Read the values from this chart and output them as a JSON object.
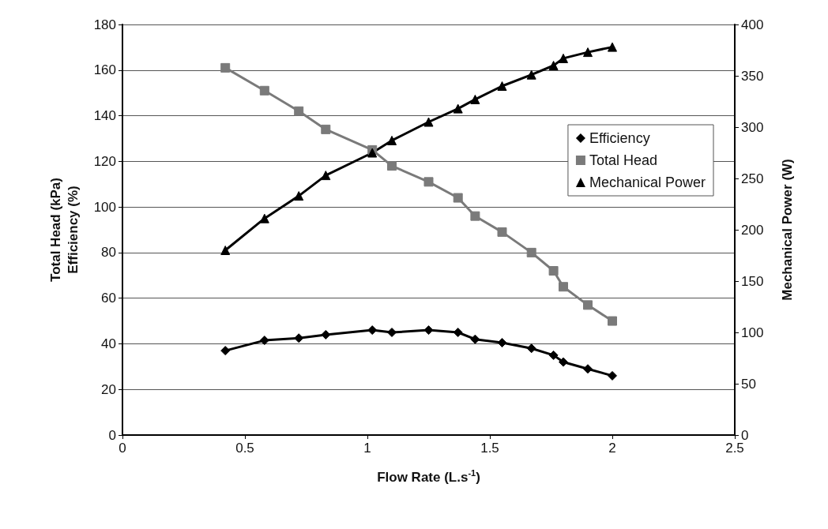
{
  "chart_data": {
    "type": "line",
    "xlabel": "Flow Rate (L.s$^{-1}$)",
    "ylabel": "Total Head (kPa)\nEfficiency (%)",
    "y2label": "Mechanical Power (W)",
    "x": [
      0.42,
      0.58,
      0.72,
      0.83,
      1.02,
      1.1,
      1.25,
      1.37,
      1.44,
      1.55,
      1.67,
      1.76,
      1.8,
      1.9,
      2.0
    ],
    "series": [
      {
        "name": "Efficiency",
        "color": "#000000",
        "marker": "diamond",
        "values": [
          37,
          41.5,
          42.5,
          44,
          46,
          45,
          46,
          45,
          42,
          40.5,
          38,
          35,
          32,
          29,
          26
        ]
      },
      {
        "name": "Total Head",
        "color": "#7a7a7a",
        "marker": "square",
        "values": [
          161,
          151,
          142,
          134,
          125,
          118,
          111,
          104,
          96,
          89,
          80,
          72,
          65,
          57,
          50
        ]
      },
      {
        "name": "Mechanical Power",
        "color": "#000000",
        "marker": "triangle",
        "axis": "y2",
        "values": [
          180,
          211,
          233,
          253,
          275,
          287,
          305,
          318,
          327,
          340,
          351,
          360,
          367,
          373,
          378
        ]
      }
    ],
    "xlim": [
      0,
      2.5
    ],
    "xticks": [
      0,
      0.5,
      1,
      1.5,
      2,
      2.5
    ],
    "ylim": [
      0,
      180
    ],
    "yticks": [
      0,
      20,
      40,
      60,
      80,
      100,
      120,
      140,
      160,
      180
    ],
    "y2lim": [
      0,
      400
    ],
    "y2ticks": [
      0,
      50,
      100,
      150,
      200,
      250,
      300,
      350,
      400
    ],
    "grid": "y",
    "legend": "right",
    "line_style": "solid"
  }
}
